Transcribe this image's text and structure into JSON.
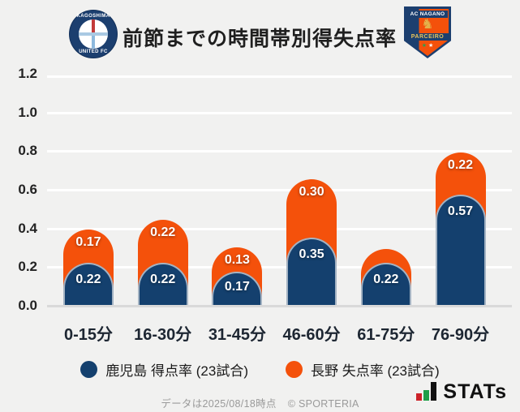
{
  "header": {
    "title": "前節までの時間帯別得失点率",
    "kagoshima_badge": {
      "top_text": "KAGOSHIMA",
      "bottom_text": "UNITED FC"
    },
    "nagano_badge": {
      "top_text": "AC NAGANO",
      "band_text": "PARCEIRO",
      "stars": "★ ★"
    }
  },
  "chart_data": {
    "type": "bar",
    "subtype": "stacked-rounded-columns",
    "title": "前節までの時間帯別得失点率",
    "categories": [
      "0-15分",
      "16-30分",
      "31-45分",
      "46-60分",
      "61-75分",
      "76-90分"
    ],
    "series": [
      {
        "name": "鹿児島 得点率 (23試合)",
        "color": "#14406e",
        "values": [
          0.22,
          0.22,
          0.17,
          0.35,
          0.22,
          0.57
        ],
        "labels": [
          "0.22",
          "0.22",
          "0.17",
          "0.35",
          "0.22",
          "0.57"
        ]
      },
      {
        "name": "長野 失点率 (23試合)",
        "color": "#f4510b",
        "values": [
          0.17,
          0.22,
          0.13,
          0.3,
          0.07,
          0.22
        ],
        "labels": [
          "0.17",
          "0.22",
          "0.13",
          "0.30",
          "",
          "0.22"
        ]
      }
    ],
    "xlabel": "",
    "ylabel": "",
    "ylim": [
      0,
      1.2
    ],
    "y_ticks": [
      "0.0",
      "0.2",
      "0.4",
      "0.6",
      "0.8",
      "1.0",
      "1.2"
    ],
    "grid": true,
    "legend_position": "bottom"
  },
  "legend": {
    "items": [
      {
        "label": "鹿児島 得点率 (23試合)",
        "color": "#14406e"
      },
      {
        "label": "長野 失点率 (23試合)",
        "color": "#f4510b"
      }
    ]
  },
  "footer": {
    "note": "データは2025/08/18時点",
    "copyright": "© SPORTERIA",
    "stats_text": "STATs"
  },
  "colors": {
    "background": "#f1f1f0",
    "gridline": "#ffffff",
    "baseline": "#d9d9d9",
    "navy": "#14406e",
    "orange": "#f4510b",
    "title_text": "#1f1f1f",
    "muted_text": "#9a9a9a"
  }
}
